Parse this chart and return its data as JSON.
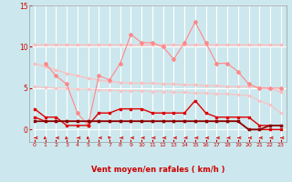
{
  "x": [
    0,
    1,
    2,
    3,
    4,
    5,
    6,
    7,
    8,
    9,
    10,
    11,
    12,
    13,
    14,
    15,
    16,
    17,
    18,
    19,
    20,
    21,
    22,
    23
  ],
  "line1": [
    10.3,
    10.3,
    10.3,
    10.3,
    10.3,
    10.3,
    10.3,
    10.3,
    10.3,
    10.3,
    10.3,
    10.3,
    10.3,
    10.3,
    10.3,
    10.3,
    10.3,
    10.3,
    10.3,
    10.3,
    10.3,
    10.3,
    10.3,
    10.3
  ],
  "line2": [
    8.0,
    7.6,
    7.2,
    6.8,
    6.5,
    6.2,
    6.0,
    5.8,
    5.7,
    5.6,
    5.6,
    5.6,
    5.5,
    5.5,
    5.4,
    5.4,
    5.3,
    5.3,
    5.2,
    5.2,
    5.2,
    5.1,
    5.0,
    4.5
  ],
  "line3": [
    5.2,
    5.1,
    5.0,
    5.0,
    4.9,
    4.9,
    4.8,
    4.8,
    4.7,
    4.7,
    4.7,
    4.6,
    4.6,
    4.5,
    4.5,
    4.4,
    4.4,
    4.3,
    4.3,
    4.2,
    4.1,
    3.5,
    3.0,
    2.0
  ],
  "line4": [
    null,
    8.0,
    6.5,
    5.5,
    2.0,
    0.5,
    6.5,
    6.0,
    8.0,
    11.5,
    10.5,
    10.5,
    10.0,
    8.5,
    10.5,
    13.0,
    10.5,
    8.0,
    8.0,
    7.0,
    5.5,
    5.0,
    5.0,
    5.0
  ],
  "line5": [
    2.5,
    1.5,
    1.5,
    0.5,
    0.5,
    0.5,
    2.0,
    2.0,
    2.5,
    2.5,
    2.5,
    2.0,
    2.0,
    2.0,
    2.0,
    3.5,
    2.0,
    1.5,
    1.5,
    1.5,
    1.5,
    0.5,
    0.5,
    0.5
  ],
  "line6": [
    1.0,
    1.0,
    1.0,
    1.0,
    1.0,
    1.0,
    1.0,
    1.0,
    1.0,
    1.0,
    1.0,
    1.0,
    1.0,
    1.0,
    1.0,
    1.0,
    1.0,
    1.0,
    1.0,
    1.0,
    0.0,
    0.0,
    0.5,
    0.5
  ],
  "line7": [
    1.5,
    1.0,
    1.0,
    1.0,
    1.0,
    1.0,
    1.0,
    1.0,
    1.0,
    1.0,
    1.0,
    1.0,
    1.0,
    1.0,
    1.0,
    1.0,
    1.0,
    1.0,
    1.0,
    1.0,
    0.0,
    0.0,
    0.0,
    0.0
  ],
  "bg_color": "#cce8ee",
  "grid_color": "#ffffff",
  "line1_color": "#ffbbbb",
  "line2_color": "#ffbbbb",
  "line3_color": "#ffbbbb",
  "line4_color": "#ff8888",
  "line5_color": "#dd0000",
  "line6_color": "#880000",
  "line7_color": "#dd0000",
  "xlabel": "Vent moyen/en rafales ( km/h )",
  "xlabel_color": "#cc0000",
  "tick_color": "#cc0000",
  "ylim": [
    -1.5,
    15
  ],
  "ylim_display": [
    0,
    15
  ],
  "yticks": [
    0,
    5,
    10,
    15
  ],
  "xticks": [
    0,
    1,
    2,
    3,
    4,
    5,
    6,
    7,
    8,
    9,
    10,
    11,
    12,
    13,
    14,
    15,
    16,
    17,
    18,
    19,
    20,
    21,
    22,
    23
  ],
  "arrow_angles": [
    270,
    225,
    270,
    225,
    270,
    225,
    270,
    315,
    270,
    270,
    270,
    270,
    270,
    270,
    270,
    270,
    270,
    270,
    270,
    270,
    270,
    270,
    270,
    270
  ]
}
